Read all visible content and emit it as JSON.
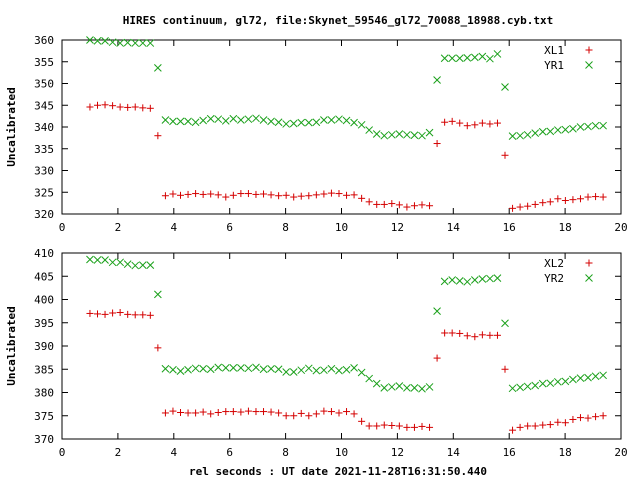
{
  "title": "HIRES continuum, gl72, file:Skynet_59546_gl72_70088_18988.cyb.txt",
  "xlabel": "rel seconds : UT date 2021-11-28T16:31:50.440",
  "colors": {
    "red": "#d40000",
    "green": "#1aa01a"
  },
  "chart_data": [
    {
      "type": "scatter",
      "ylabel": "Uncalibrated",
      "xlim": [
        0,
        20
      ],
      "ylim": [
        320,
        360
      ],
      "xticks": [
        "0",
        "2",
        "4",
        "6",
        "8",
        "10",
        "12",
        "14",
        "16",
        "18",
        "20"
      ],
      "yticks": [
        "320",
        "325",
        "330",
        "335",
        "340",
        "345",
        "350",
        "355",
        "360"
      ],
      "legend_position": "top-right",
      "series": [
        {
          "name": "XL1",
          "marker": "plus",
          "color": "#d40000",
          "x": [
            1.0,
            1.27,
            1.54,
            1.81,
            2.08,
            2.35,
            2.62,
            2.89,
            3.16,
            3.43,
            3.7,
            3.97,
            4.24,
            4.51,
            4.78,
            5.05,
            5.32,
            5.59,
            5.86,
            6.13,
            6.4,
            6.67,
            6.94,
            7.21,
            7.48,
            7.75,
            8.02,
            8.29,
            8.56,
            8.83,
            9.1,
            9.37,
            9.64,
            9.91,
            10.18,
            10.45,
            10.72,
            10.99,
            11.26,
            11.53,
            11.8,
            12.07,
            12.34,
            12.61,
            12.88,
            13.15,
            13.42,
            13.69,
            13.96,
            14.23,
            14.5,
            14.77,
            15.04,
            15.31,
            15.58,
            15.85,
            16.12,
            16.39,
            16.66,
            16.93,
            17.2,
            17.47,
            17.74,
            18.01,
            18.28,
            18.55,
            18.82,
            19.09,
            19.36
          ],
          "y": [
            344.6,
            345.0,
            345.1,
            344.9,
            344.6,
            344.5,
            344.6,
            344.4,
            344.3,
            338.0,
            324.2,
            324.6,
            324.3,
            324.5,
            324.7,
            324.5,
            324.6,
            324.4,
            323.9,
            324.3,
            324.7,
            324.7,
            324.5,
            324.6,
            324.4,
            324.2,
            324.3,
            323.9,
            324.1,
            324.2,
            324.4,
            324.6,
            324.8,
            324.7,
            324.3,
            324.4,
            323.6,
            322.8,
            322.2,
            322.2,
            322.4,
            322.1,
            321.6,
            321.9,
            322.1,
            321.9,
            336.2,
            341.1,
            341.3,
            340.9,
            340.3,
            340.5,
            340.9,
            340.7,
            340.9,
            333.5,
            321.3,
            321.6,
            321.8,
            322.2,
            322.6,
            322.8,
            323.5,
            323.1,
            323.3,
            323.5,
            323.9,
            324.0,
            323.9
          ]
        },
        {
          "name": "YR1",
          "marker": "cross",
          "color": "#1aa01a",
          "x": [
            1.0,
            1.27,
            1.54,
            1.81,
            2.08,
            2.35,
            2.62,
            2.89,
            3.16,
            3.43,
            3.7,
            3.97,
            4.24,
            4.51,
            4.78,
            5.05,
            5.32,
            5.59,
            5.86,
            6.13,
            6.4,
            6.67,
            6.94,
            7.21,
            7.48,
            7.75,
            8.02,
            8.29,
            8.56,
            8.83,
            9.1,
            9.37,
            9.64,
            9.91,
            10.18,
            10.45,
            10.72,
            10.99,
            11.26,
            11.53,
            11.8,
            12.07,
            12.34,
            12.61,
            12.88,
            13.15,
            13.42,
            13.69,
            13.96,
            14.23,
            14.5,
            14.77,
            15.04,
            15.31,
            15.58,
            15.85,
            16.12,
            16.39,
            16.66,
            16.93,
            17.2,
            17.47,
            17.74,
            18.01,
            18.28,
            18.55,
            18.82,
            19.09,
            19.36
          ],
          "y": [
            360.0,
            359.8,
            359.8,
            359.5,
            359.3,
            359.4,
            359.3,
            359.3,
            359.3,
            353.6,
            341.6,
            341.3,
            341.3,
            341.3,
            341.1,
            341.5,
            341.9,
            341.8,
            341.4,
            341.9,
            341.6,
            341.8,
            342.0,
            341.6,
            341.3,
            341.1,
            340.7,
            340.8,
            341.0,
            341.0,
            341.1,
            341.6,
            341.6,
            341.8,
            341.5,
            341.0,
            340.5,
            339.3,
            338.4,
            338.0,
            338.2,
            338.4,
            338.2,
            338.1,
            338.0,
            338.7,
            350.8,
            355.8,
            355.8,
            355.8,
            355.9,
            356.0,
            356.2,
            355.7,
            356.8,
            349.2,
            337.9,
            338.0,
            338.2,
            338.6,
            338.9,
            339.0,
            339.3,
            339.4,
            339.6,
            340.0,
            340.1,
            340.3,
            340.3
          ]
        }
      ]
    },
    {
      "type": "scatter",
      "ylabel": "Uncalibrated",
      "xlim": [
        0,
        20
      ],
      "ylim": [
        370,
        410
      ],
      "xticks": [
        "0",
        "2",
        "4",
        "6",
        "8",
        "10",
        "12",
        "14",
        "16",
        "18",
        "20"
      ],
      "yticks": [
        "370",
        "375",
        "380",
        "385",
        "390",
        "395",
        "400",
        "405",
        "410"
      ],
      "legend_position": "top-right",
      "series": [
        {
          "name": "XL2",
          "marker": "plus",
          "color": "#d40000",
          "x": [
            1.0,
            1.27,
            1.54,
            1.81,
            2.08,
            2.35,
            2.62,
            2.89,
            3.16,
            3.43,
            3.7,
            3.97,
            4.24,
            4.51,
            4.78,
            5.05,
            5.32,
            5.59,
            5.86,
            6.13,
            6.4,
            6.67,
            6.94,
            7.21,
            7.48,
            7.75,
            8.02,
            8.29,
            8.56,
            8.83,
            9.1,
            9.37,
            9.64,
            9.91,
            10.18,
            10.45,
            10.72,
            10.99,
            11.26,
            11.53,
            11.8,
            12.07,
            12.34,
            12.61,
            12.88,
            13.15,
            13.42,
            13.69,
            13.96,
            14.23,
            14.5,
            14.77,
            15.04,
            15.31,
            15.58,
            15.85,
            16.12,
            16.39,
            16.66,
            16.93,
            17.2,
            17.47,
            17.74,
            18.01,
            18.28,
            18.55,
            18.82,
            19.09,
            19.36
          ],
          "y": [
            397.0,
            396.9,
            396.8,
            397.1,
            397.2,
            396.8,
            396.7,
            396.7,
            396.6,
            389.6,
            375.6,
            376.0,
            375.7,
            375.6,
            375.6,
            375.8,
            375.4,
            375.7,
            375.9,
            375.9,
            375.8,
            376.0,
            375.9,
            375.9,
            375.8,
            375.6,
            375.0,
            375.0,
            375.5,
            375.0,
            375.4,
            376.0,
            375.9,
            375.6,
            375.9,
            375.4,
            373.8,
            372.8,
            372.8,
            373.0,
            372.9,
            372.8,
            372.5,
            372.5,
            372.7,
            372.5,
            387.4,
            392.8,
            392.8,
            392.7,
            392.2,
            392.0,
            392.4,
            392.3,
            392.3,
            385.0,
            371.9,
            372.5,
            372.8,
            372.8,
            373.0,
            373.1,
            373.6,
            373.5,
            374.2,
            374.6,
            374.5,
            374.8,
            375.0
          ]
        },
        {
          "name": "YR2",
          "marker": "cross",
          "color": "#1aa01a",
          "x": [
            1.0,
            1.27,
            1.54,
            1.81,
            2.08,
            2.35,
            2.62,
            2.89,
            3.16,
            3.43,
            3.7,
            3.97,
            4.24,
            4.51,
            4.78,
            5.05,
            5.32,
            5.59,
            5.86,
            6.13,
            6.4,
            6.67,
            6.94,
            7.21,
            7.48,
            7.75,
            8.02,
            8.29,
            8.56,
            8.83,
            9.1,
            9.37,
            9.64,
            9.91,
            10.18,
            10.45,
            10.72,
            10.99,
            11.26,
            11.53,
            11.8,
            12.07,
            12.34,
            12.61,
            12.88,
            13.15,
            13.42,
            13.69,
            13.96,
            14.23,
            14.5,
            14.77,
            15.04,
            15.31,
            15.58,
            15.85,
            16.12,
            16.39,
            16.66,
            16.93,
            17.2,
            17.47,
            17.74,
            18.01,
            18.28,
            18.55,
            18.82,
            19.09,
            19.36
          ],
          "y": [
            408.6,
            408.5,
            408.5,
            408.0,
            408.0,
            407.6,
            407.3,
            407.4,
            407.4,
            401.1,
            385.1,
            384.9,
            384.6,
            384.9,
            385.2,
            385.1,
            385.0,
            385.4,
            385.3,
            385.3,
            385.3,
            385.2,
            385.4,
            385.0,
            385.1,
            385.0,
            384.4,
            384.4,
            384.8,
            385.2,
            384.7,
            384.8,
            385.1,
            384.7,
            384.9,
            385.3,
            384.3,
            383.0,
            381.9,
            381.0,
            381.2,
            381.4,
            381.0,
            381.0,
            380.8,
            381.2,
            397.5,
            403.9,
            404.2,
            404.0,
            403.8,
            404.2,
            404.4,
            404.5,
            404.6,
            394.9,
            380.9,
            381.1,
            381.3,
            381.5,
            381.9,
            382.0,
            382.3,
            382.4,
            382.8,
            383.1,
            383.2,
            383.5,
            383.7
          ]
        }
      ]
    }
  ]
}
